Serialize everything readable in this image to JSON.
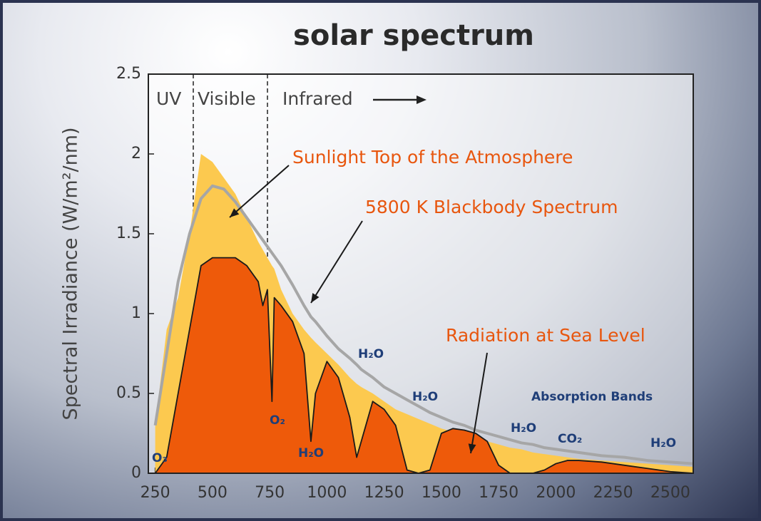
{
  "chart_data": {
    "type": "area",
    "title": "solar spectrum",
    "y_label": "Spectral Irradiance (W/m²/nm)",
    "regions": [
      "UV",
      "Visible",
      "Infrared"
    ],
    "xlim": [
      220,
      2600
    ],
    "ylim": [
      0,
      2.5
    ],
    "xticks": [
      250,
      500,
      750,
      1000,
      1250,
      1500,
      1750,
      2000,
      2250,
      2500
    ],
    "yticks": [
      0,
      0.5,
      1,
      1.5,
      2,
      2.5
    ],
    "x": [
      250,
      300,
      350,
      400,
      450,
      500,
      550,
      600,
      650,
      700,
      720,
      740,
      760,
      770,
      800,
      850,
      900,
      930,
      950,
      1000,
      1050,
      1100,
      1130,
      1150,
      1200,
      1250,
      1300,
      1350,
      1400,
      1450,
      1500,
      1550,
      1600,
      1650,
      1700,
      1750,
      1800,
      1850,
      1900,
      1950,
      2000,
      2050,
      2100,
      2200,
      2300,
      2400,
      2500,
      2600
    ],
    "series": [
      {
        "name": "Sunlight Top of the Atmosphere",
        "type": "area",
        "color": "#fcc94f",
        "values": [
          0.3,
          0.9,
          1.1,
          1.5,
          2.0,
          1.95,
          1.85,
          1.75,
          1.6,
          1.45,
          1.4,
          1.35,
          1.3,
          1.28,
          1.15,
          1.0,
          0.9,
          0.85,
          0.82,
          0.75,
          0.68,
          0.6,
          0.56,
          0.54,
          0.5,
          0.45,
          0.4,
          0.37,
          0.34,
          0.31,
          0.28,
          0.26,
          0.24,
          0.22,
          0.2,
          0.18,
          0.16,
          0.15,
          0.13,
          0.12,
          0.11,
          0.1,
          0.09,
          0.08,
          0.07,
          0.06,
          0.05,
          0.04
        ]
      },
      {
        "name": "Radiation at Sea Level",
        "type": "area",
        "color": "#ee5a0a",
        "values": [
          0,
          0.1,
          0.5,
          0.9,
          1.3,
          1.35,
          1.35,
          1.35,
          1.3,
          1.2,
          1.05,
          1.15,
          0.45,
          1.1,
          1.05,
          0.95,
          0.75,
          0.2,
          0.5,
          0.7,
          0.6,
          0.35,
          0.1,
          0.2,
          0.45,
          0.4,
          0.3,
          0.02,
          0,
          0.02,
          0.25,
          0.28,
          0.27,
          0.25,
          0.2,
          0.05,
          0,
          0,
          0,
          0.02,
          0.06,
          0.08,
          0.08,
          0.07,
          0.05,
          0.03,
          0.01,
          0
        ]
      },
      {
        "name": "5800 K Blackbody Spectrum",
        "type": "line",
        "color": "#a6a6a6",
        "values": [
          0.3,
          0.75,
          1.2,
          1.5,
          1.72,
          1.8,
          1.78,
          1.7,
          1.6,
          1.5,
          1.46,
          1.42,
          1.38,
          1.36,
          1.3,
          1.18,
          1.05,
          0.98,
          0.95,
          0.86,
          0.78,
          0.72,
          0.68,
          0.65,
          0.6,
          0.54,
          0.5,
          0.46,
          0.42,
          0.38,
          0.35,
          0.32,
          0.3,
          0.27,
          0.25,
          0.23,
          0.21,
          0.19,
          0.18,
          0.16,
          0.15,
          0.14,
          0.13,
          0.11,
          0.1,
          0.08,
          0.07,
          0.06
        ]
      }
    ],
    "absorption_labels": [
      "O₃",
      "O₂",
      "H₂O",
      "H₂O",
      "H₂O",
      "H₂O",
      "CO₂",
      "H₂O",
      "Absorption Bands"
    ]
  }
}
